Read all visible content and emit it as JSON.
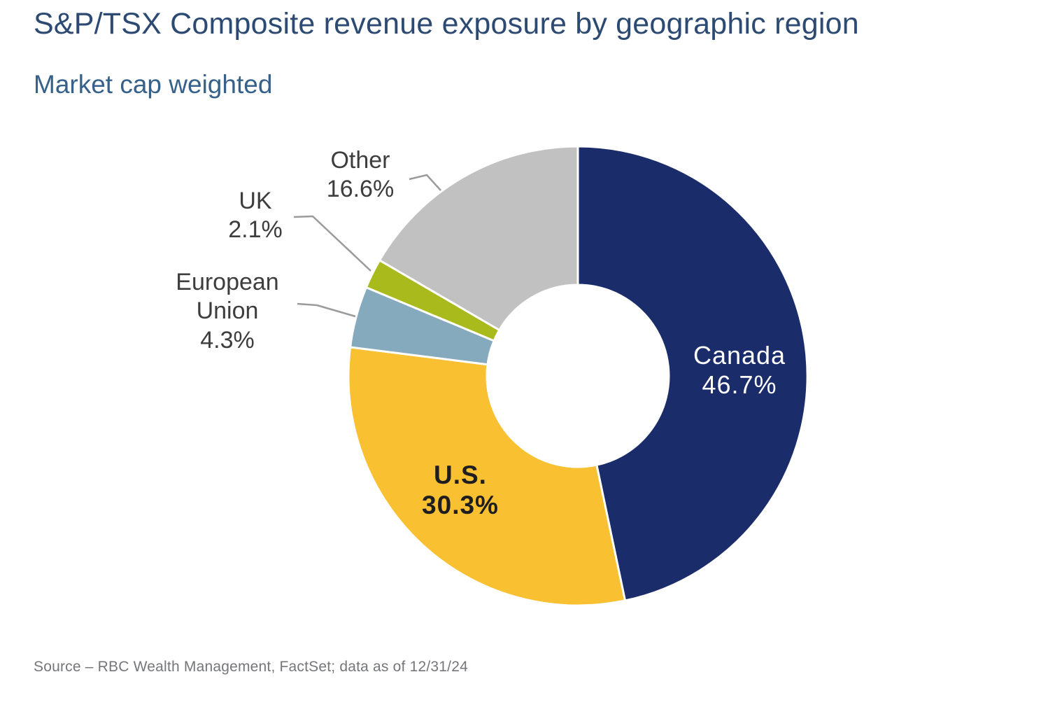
{
  "header": {
    "title": "S&P/TSX Composite revenue exposure by geographic region",
    "subtitle": "Market cap weighted"
  },
  "footer": {
    "source": "Source – RBC Wealth Management, FactSet; data as of 12/31/24"
  },
  "chart_data": {
    "type": "pie",
    "variant": "donut",
    "title": "S&P/TSX Composite revenue exposure by geographic region",
    "subtitle": "Market cap weighted",
    "unit": "percent",
    "total": 100,
    "start_angle_deg": 0,
    "direction": "clockwise",
    "legend": "none",
    "callout_line_color": "#9b9b9b",
    "slice_separator_color": "#ffffff",
    "slices": [
      {
        "key": "canada",
        "name": "Canada",
        "value": 46.7,
        "pct_label": "46.7%",
        "color": "#1b2c6b",
        "label_placement": "inside",
        "label_color": "#ffffff"
      },
      {
        "key": "us",
        "name": "U.S.",
        "value": 30.3,
        "pct_label": "30.3%",
        "color": "#f9c032",
        "label_placement": "inside",
        "label_color": "#1e1e1e"
      },
      {
        "key": "european-union",
        "name": "European Union",
        "value": 4.3,
        "pct_label": "4.3%",
        "color": "#86aabd",
        "label_placement": "outside",
        "label_color": "#3d3d3d"
      },
      {
        "key": "uk",
        "name": "UK",
        "value": 2.1,
        "pct_label": "2.1%",
        "color": "#a9ba1c",
        "label_placement": "outside",
        "label_color": "#3d3d3d"
      },
      {
        "key": "other",
        "name": "Other",
        "value": 16.6,
        "pct_label": "16.6%",
        "color": "#c1c1c1",
        "label_placement": "outside",
        "label_color": "#3d3d3d"
      }
    ]
  }
}
